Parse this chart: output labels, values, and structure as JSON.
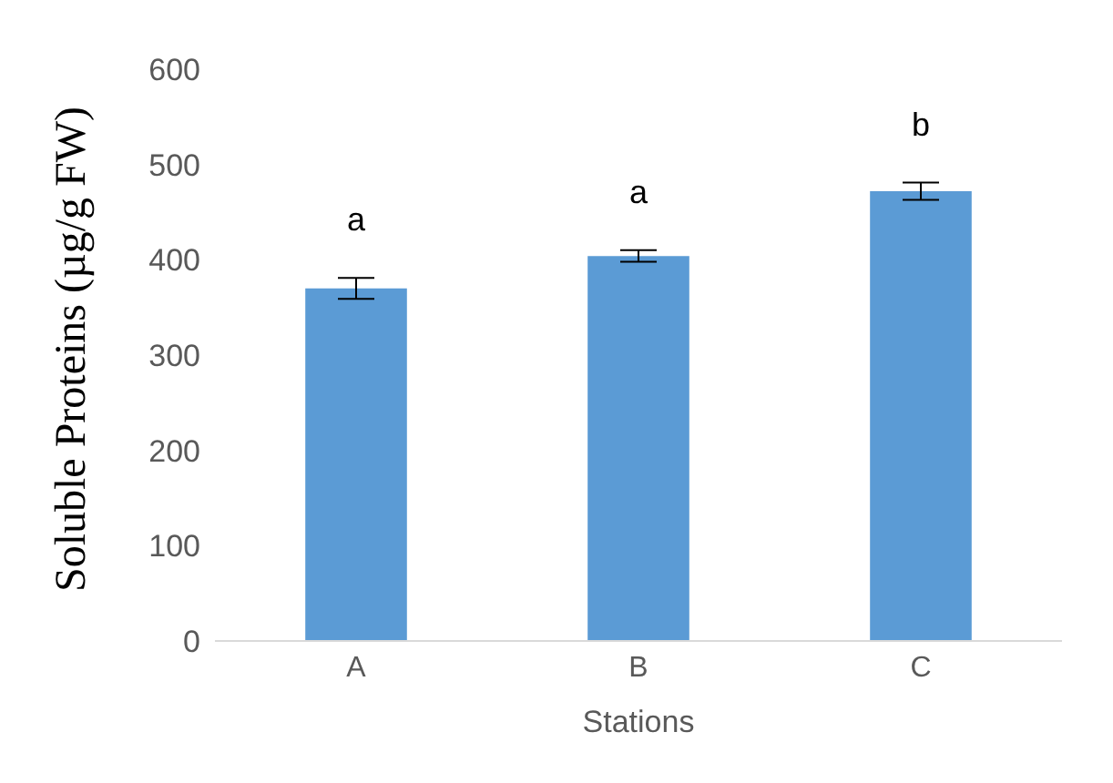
{
  "chart_data": {
    "type": "bar",
    "xlabel": "Stations",
    "ylabel": "Soluble Proteins (µg/g FW)",
    "categories": [
      "A",
      "B",
      "C"
    ],
    "values": [
      370,
      404,
      472
    ],
    "errors": [
      11,
      6,
      9
    ],
    "color": "#5b9bd5",
    "ylim": [
      0,
      600
    ],
    "yticks": [
      0,
      100,
      200,
      300,
      400,
      500,
      600
    ],
    "grid": false,
    "annotations": [
      "a",
      "a",
      "b"
    ]
  }
}
